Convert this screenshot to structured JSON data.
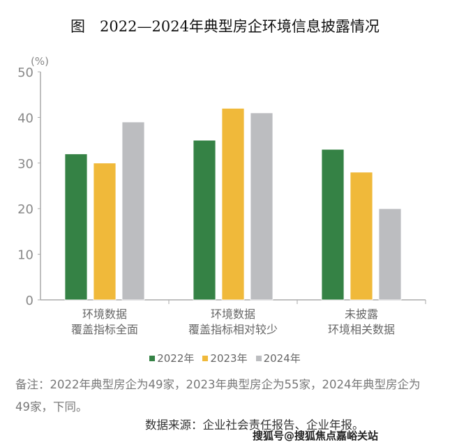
{
  "chart_data": {
    "type": "bar",
    "title": "图　2022—2024年典型房企环境信息披露情况",
    "ylabel": "(%)",
    "ylim": [
      0,
      50
    ],
    "yticks": [
      0,
      10,
      20,
      30,
      40,
      50
    ],
    "grid": false,
    "legend_position": "bottom",
    "categories": [
      [
        "环境数据",
        "覆盖指标全面"
      ],
      [
        "环境数据",
        "覆盖指标相对较少"
      ],
      [
        "未披露",
        "环境相关数据"
      ]
    ],
    "series": [
      {
        "name": "2022年",
        "color": "#358245",
        "values": [
          32,
          35,
          33
        ]
      },
      {
        "name": "2023年",
        "color": "#f0b93a",
        "values": [
          30,
          42,
          28
        ]
      },
      {
        "name": "2024年",
        "color": "#bcbdc0",
        "values": [
          39,
          41,
          20
        ]
      }
    ]
  },
  "note": "备注：2022年典型房企为49家，2023年典型房企为55家，2024年典型房企为49家，下同。",
  "source": "数据来源：企业社会责任报告、企业年报。",
  "watermark": "搜狐号@搜狐焦点嘉峪关站"
}
